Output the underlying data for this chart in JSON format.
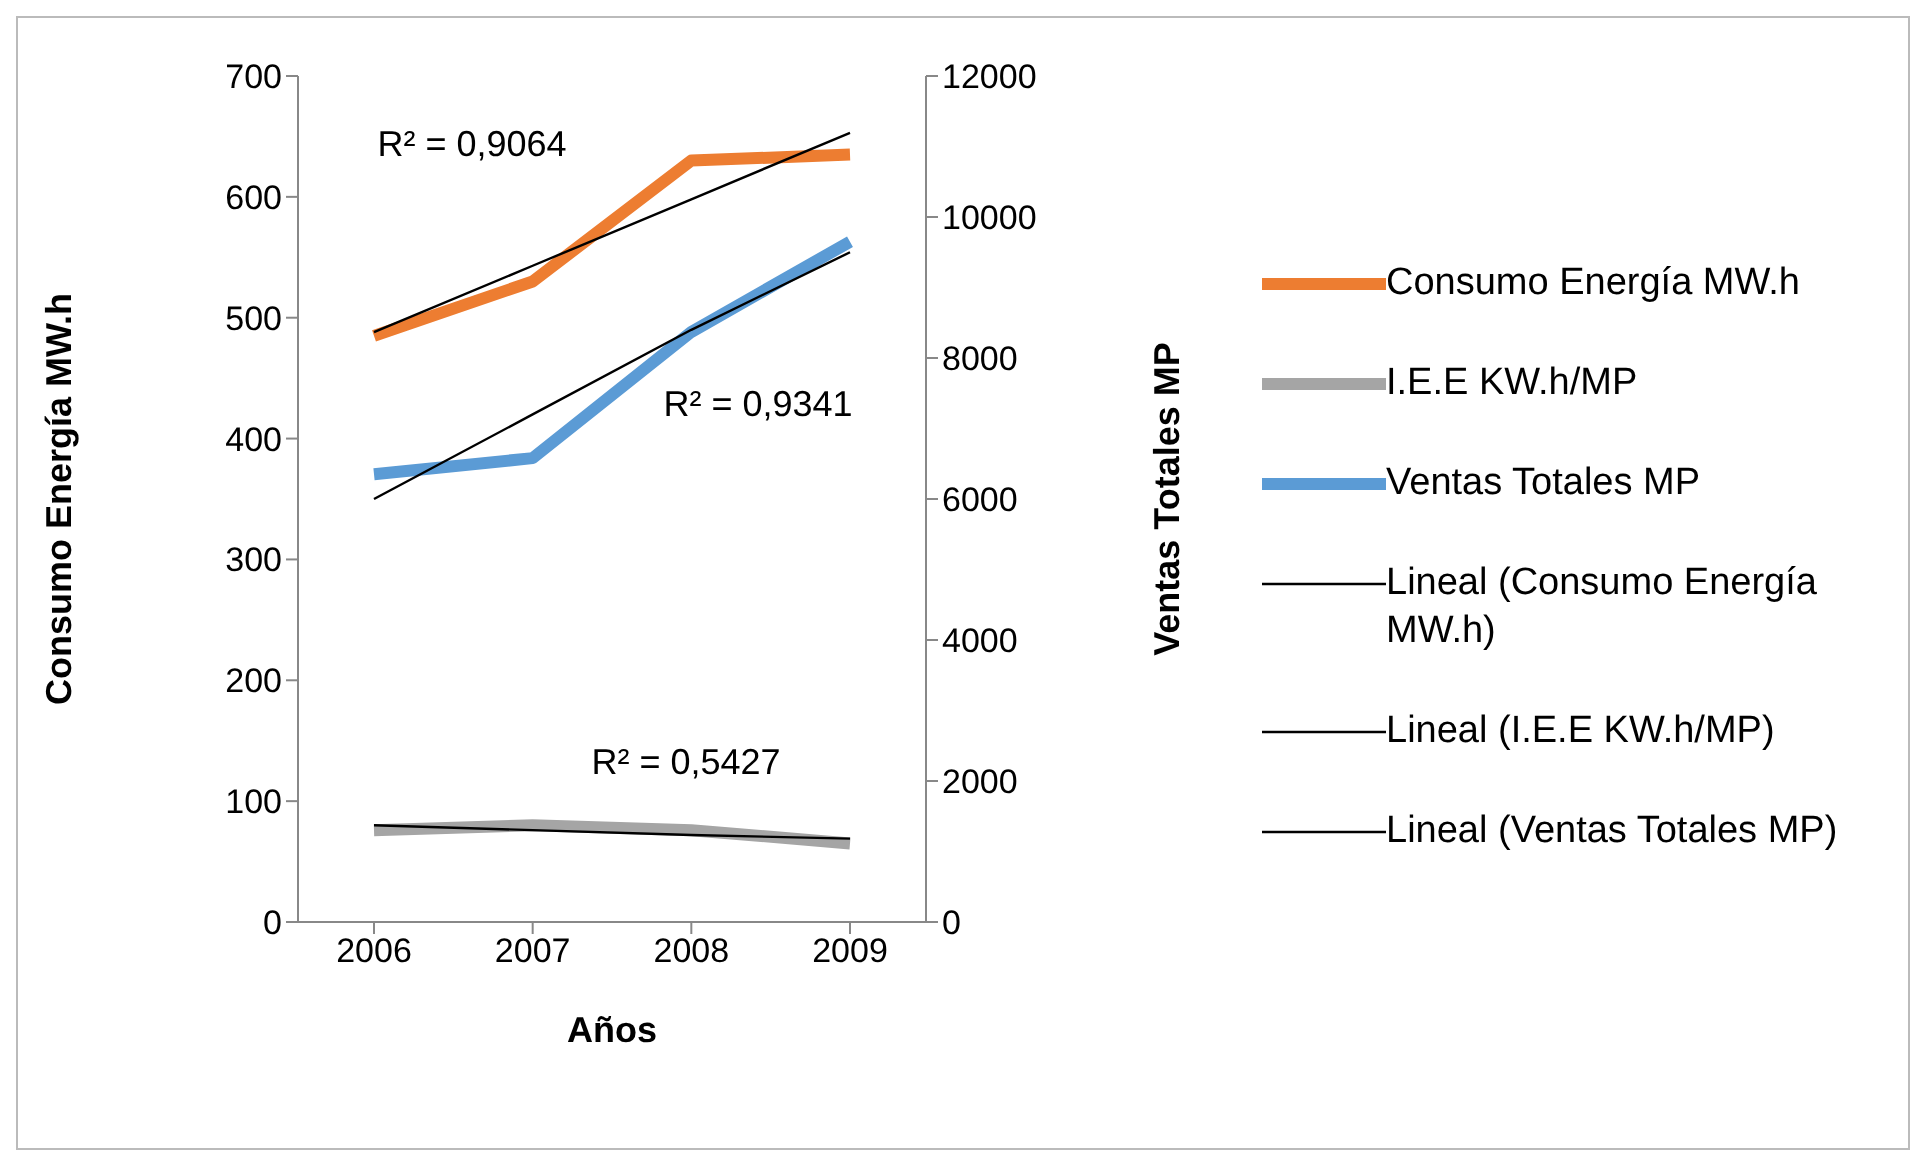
{
  "chart_data": {
    "type": "line",
    "xlabel": "Años",
    "ylabel": "Consumo Energía MW.h",
    "y2label": "Ventas Totales MP",
    "categories": [
      "2006",
      "2007",
      "2008",
      "2009"
    ],
    "series": [
      {
        "name": "Consumo Energía MW.h",
        "color": "#ed7d31",
        "values": [
          485,
          530,
          630,
          635
        ]
      },
      {
        "name": "I.E.E KW.h/MP",
        "color": "#a5a5a5",
        "values": [
          76,
          80,
          76,
          65
        ]
      },
      {
        "name": "Ventas Totales MP",
        "color": "#5b9bd5",
        "values": [
          6350,
          6580,
          8370,
          9650
        ],
        "axis": "y2"
      },
      {
        "name": "Lineal (Consumo Energía MW.h)",
        "type": "line",
        "color": "#000000",
        "values": [
          488,
          543,
          598,
          653
        ]
      },
      {
        "name": "Lineal (I.E.E KW.h/MP)",
        "type": "line",
        "color": "#000000",
        "values": [
          80,
          76,
          72,
          69
        ]
      },
      {
        "name": "Lineal (Ventas Totales MP)",
        "type": "line",
        "color": "#000000",
        "values": [
          6000,
          7200,
          8400,
          9500
        ],
        "axis": "y2"
      }
    ],
    "ylim": [
      0,
      700
    ],
    "yticks": [
      0,
      100,
      200,
      300,
      400,
      500,
      600,
      700
    ],
    "y2lim": [
      0,
      12000
    ],
    "y2ticks": [
      0,
      2000,
      4000,
      6000,
      8000,
      10000,
      12000
    ],
    "annotations": [
      "R² = 0,9064",
      "R² = 0,9341",
      "R² = 0,5427"
    ],
    "legend": "right",
    "marker": "none",
    "line_style": "solid"
  }
}
